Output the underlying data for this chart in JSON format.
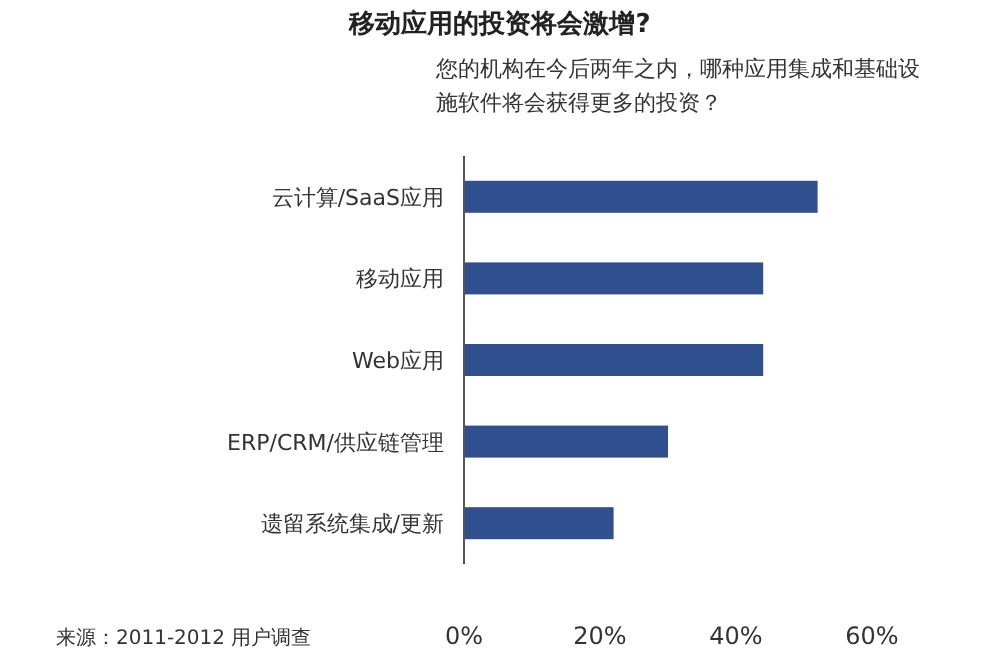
{
  "chart_data": {
    "type": "bar",
    "orientation": "horizontal",
    "title": "移动应用的投资将会激增?",
    "subtitle": "您的机构在今后两年之内，哪种应用集成和基础设施软件将会获得更多的投资？",
    "categories": [
      "云计算/SaaS应用",
      "移动应用",
      "Web应用",
      "ERP/CRM/供应链管理",
      "遗留系统集成/更新"
    ],
    "values": [
      52,
      44,
      44,
      30,
      22
    ],
    "color": "#2f4f8f",
    "xlim": [
      0,
      60
    ],
    "xticks": [
      {
        "value": 0,
        "label": "0%"
      },
      {
        "value": 20,
        "label": "20%"
      },
      {
        "value": 40,
        "label": "40%"
      },
      {
        "value": 60,
        "label": "60%"
      }
    ],
    "annotations": [
      "来源：2011-2012 用户调查"
    ]
  }
}
